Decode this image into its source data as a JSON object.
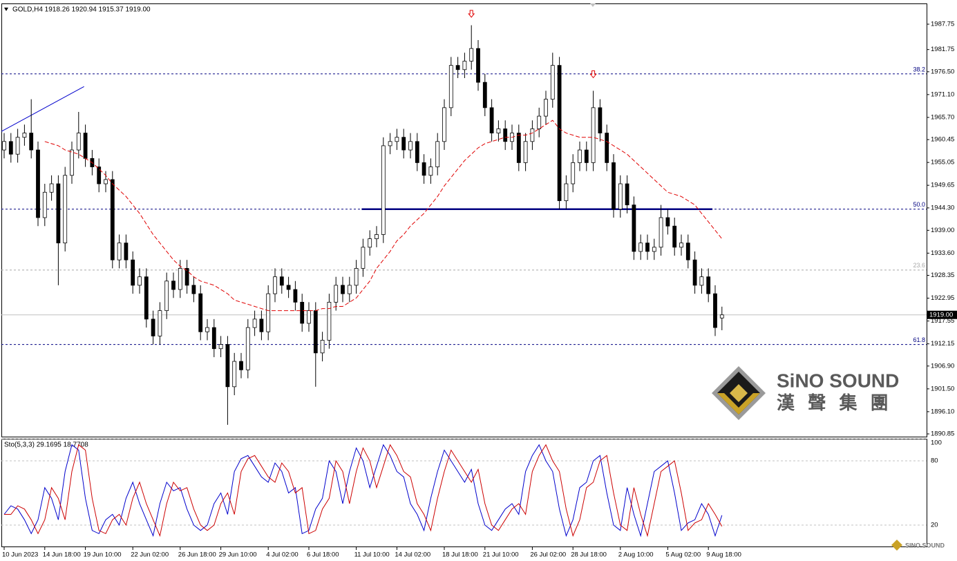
{
  "chart_data": [
    {
      "type": "candlestick",
      "title": "GOLD,H4  1918.26 1920.94 1915.37 1919.00",
      "categories": [
        "10 Jun 2023",
        null,
        null,
        null,
        null,
        null,
        "14 Jun 18:00",
        null,
        null,
        null,
        null,
        null,
        "19 Jun 10:00",
        null,
        null,
        null,
        null,
        null,
        null,
        "22 Jun 02:00",
        null,
        null,
        null,
        null,
        null,
        null,
        "26 Jun 18:00",
        null,
        null,
        null,
        null,
        null,
        "29 Jun 10:00",
        null,
        null,
        null,
        null,
        null,
        null,
        "4 Jul 02:00",
        null,
        null,
        null,
        null,
        null,
        "6 Jul 18:00",
        null,
        null,
        null,
        null,
        null,
        null,
        "11 Jul 10:00",
        null,
        null,
        null,
        null,
        null,
        "14 Jul 02:00",
        null,
        null,
        null,
        null,
        null,
        null,
        "18 Jul 18:00",
        null,
        null,
        null,
        null,
        null,
        "21 Jul 10:00",
        null,
        null,
        null,
        null,
        null,
        null,
        "26 Jul 02:00",
        null,
        null,
        null,
        null,
        null,
        "28 Jul 18:00",
        null,
        null,
        null,
        null,
        null,
        null,
        "2 Aug 10:00",
        null,
        null,
        null,
        null,
        null,
        null,
        "5 Aug 02:00",
        null,
        null,
        null,
        null,
        null,
        "9 Aug 18:00",
        null,
        null
      ],
      "open": [
        1958,
        1960,
        1957,
        1961,
        1962,
        1958,
        1942,
        1948,
        1950,
        1936,
        1952,
        1958,
        1962,
        1956,
        1954,
        1950,
        1951,
        1932,
        1936,
        1932,
        1926,
        1928,
        1918,
        1914,
        1920,
        1927,
        1925,
        1930,
        1926,
        1924,
        1915,
        1916,
        1911,
        1912,
        1902,
        1908,
        1906,
        1916,
        1918,
        1915,
        1924,
        1928,
        1926,
        1925,
        1922,
        1917,
        1920,
        1910,
        1913,
        1922,
        1926,
        1924,
        1926,
        1930,
        1935,
        1937,
        1938,
        1959,
        1960,
        1961,
        1958,
        1960,
        1955,
        1952,
        1954,
        1960,
        1968,
        1978,
        1977,
        1979,
        1982,
        1974,
        1968,
        1962,
        1963,
        1960,
        1962,
        1955,
        1960,
        1963,
        1966,
        1970,
        1978,
        1946,
        1950,
        1955,
        1958,
        1955,
        1968,
        1962,
        1955,
        1944,
        1950,
        1945,
        1934,
        1936,
        1934,
        1935,
        1942,
        1940,
        1935,
        1936,
        1932,
        1926,
        1928,
        1924,
        1918.26
      ],
      "high": [
        1962,
        1962,
        1963,
        1964,
        1970,
        1960,
        1950,
        1952,
        1952,
        1954,
        1960,
        1967,
        1964,
        1958,
        1956,
        1953,
        1953,
        1938,
        1938,
        1934,
        1930,
        1930,
        1920,
        1922,
        1929,
        1929,
        1932,
        1932,
        1928,
        1926,
        1918,
        1918,
        1914,
        1914,
        1910,
        1910,
        1918,
        1920,
        1920,
        1926,
        1930,
        1930,
        1928,
        1927,
        1924,
        1922,
        1922,
        1915,
        1924,
        1928,
        1928,
        1928,
        1932,
        1937,
        1939,
        1940,
        1961,
        1962,
        1963,
        1963,
        1962,
        1962,
        1957,
        1956,
        1962,
        1970,
        1980,
        1980,
        1981,
        1987.5,
        1984,
        1976,
        1970,
        1965,
        1965,
        1964,
        1964,
        1962,
        1965,
        1968,
        1972,
        1981,
        1980,
        1952,
        1957,
        1960,
        1960,
        1972,
        1970,
        1964,
        1957,
        1952,
        1952,
        1947,
        1938,
        1938,
        1937,
        1945,
        1944,
        1942,
        1938,
        1938,
        1934,
        1930,
        1930,
        1926,
        1920.94
      ],
      "low": [
        1956,
        1955,
        1955,
        1959,
        1956,
        1940,
        1940,
        1946,
        1926,
        1934,
        1950,
        1956,
        1954,
        1952,
        1948,
        1948,
        1930,
        1930,
        1930,
        1924,
        1924,
        1916,
        1912,
        1912,
        1918,
        1923,
        1923,
        1924,
        1922,
        1913,
        1913,
        1909,
        1909,
        1893,
        1900,
        1904,
        1904,
        1914,
        1913,
        1913,
        1922,
        1924,
        1923,
        1920,
        1915,
        1915,
        1902,
        1908,
        1911,
        1920,
        1922,
        1922,
        1924,
        1928,
        1933,
        1935,
        1936,
        1957,
        1958,
        1956,
        1956,
        1953,
        1950,
        1950,
        1952,
        1958,
        1966,
        1975,
        1975,
        1977,
        1972,
        1966,
        1960,
        1960,
        1958,
        1958,
        1953,
        1953,
        1958,
        1961,
        1964,
        1968,
        1944,
        1944,
        1948,
        1953,
        1953,
        1953,
        1960,
        1953,
        1942,
        1942,
        1943,
        1932,
        1932,
        1932,
        1932,
        1933,
        1938,
        1933,
        1933,
        1930,
        1924,
        1924,
        1922,
        1914,
        1915.37
      ],
      "close": [
        1960,
        1957,
        1961,
        1962,
        1958,
        1942,
        1948,
        1950,
        1936,
        1952,
        1958,
        1962,
        1956,
        1954,
        1950,
        1951,
        1932,
        1936,
        1932,
        1926,
        1928,
        1918,
        1914,
        1920,
        1927,
        1925,
        1930,
        1926,
        1924,
        1915,
        1916,
        1911,
        1912,
        1902,
        1908,
        1906,
        1916,
        1918,
        1915,
        1924,
        1928,
        1926,
        1925,
        1922,
        1917,
        1920,
        1910,
        1913,
        1922,
        1926,
        1924,
        1926,
        1930,
        1935,
        1937,
        1938,
        1959,
        1960,
        1961,
        1958,
        1960,
        1955,
        1952,
        1954,
        1960,
        1968,
        1978,
        1977,
        1979,
        1982,
        1974,
        1968,
        1962,
        1963,
        1960,
        1962,
        1955,
        1960,
        1963,
        1966,
        1970,
        1978,
        1946,
        1950,
        1955,
        1958,
        1955,
        1968,
        1962,
        1955,
        1944,
        1950,
        1945,
        1934,
        1936,
        1934,
        1935,
        1942,
        1940,
        1935,
        1936,
        1932,
        1926,
        1928,
        1924,
        1916,
        1919
      ],
      "up_color": "#ffffff",
      "down_color": "#000000",
      "wick_color": "#000000",
      "moving_average": {
        "color": "#e00000",
        "values": [
          null,
          null,
          null,
          null,
          null,
          null,
          1960,
          1959.5,
          1959,
          1958,
          1957.5,
          1957,
          1956,
          1955,
          1953.5,
          1952,
          1950,
          1948.5,
          1947,
          1945,
          1943,
          1940.5,
          1938,
          1936,
          1934,
          1932,
          1930.5,
          1929.5,
          1928,
          1927,
          1926.5,
          1926,
          1925,
          1924,
          1922.5,
          1922,
          1921.5,
          1921,
          1920.5,
          1920,
          1920,
          1920,
          1920,
          1920,
          1920,
          1920,
          1920,
          1920.5,
          1920.5,
          1921,
          1921,
          1922,
          1923,
          1925,
          1927,
          1930,
          1932,
          1934,
          1936.5,
          1938,
          1940,
          1941.5,
          1943,
          1945,
          1947,
          1949.5,
          1951.5,
          1953.5,
          1955.5,
          1957,
          1958.5,
          1959.5,
          1960,
          1960.5,
          1961,
          1961,
          1961.5,
          1961.5,
          1962,
          1963,
          1964,
          1965,
          1963,
          1962,
          1961.5,
          1961,
          1961,
          1961,
          1960.5,
          1960,
          1959,
          1958,
          1957,
          1955.5,
          1954,
          1952.5,
          1951,
          1949.5,
          1948,
          1947.5,
          1947,
          1946,
          1945,
          1943,
          1941,
          1939,
          1937
        ]
      },
      "ylim": [
        1890.2,
        1992.65
      ],
      "yticks": [
        1987.75,
        1981.75,
        {
          "value": 1976.5,
          "label": "1976.50"
        },
        {
          "value": 1971.1,
          "label": "1971.10"
        },
        {
          "value": 1965.7,
          "label": "1965.70"
        },
        1960.45,
        1955.05,
        1949.65,
        {
          "value": 1944.3,
          "label": "1944.30"
        },
        {
          "value": 1939,
          "label": "1939.00"
        },
        {
          "value": 1933.6,
          "label": "1933.60"
        },
        1928.35,
        1922.95,
        1917.55,
        1912.15,
        {
          "value": 1906.9,
          "label": "1906.90"
        },
        {
          "value": 1901.5,
          "label": "1901.50"
        },
        {
          "value": 1896.1,
          "label": "1896.10"
        },
        1890.85
      ],
      "levels": [
        {
          "price": 1976.0,
          "ratio": "38.2",
          "color": "#000080"
        },
        {
          "price": 1944.0,
          "ratio": "50.0",
          "color": "#000080"
        },
        {
          "price": 1929.6,
          "ratio": "23.6",
          "color": "#a8a8a8"
        },
        {
          "price": 1912.0,
          "ratio": "61.8",
          "color": "#000080"
        }
      ],
      "current_price": {
        "value": 1919,
        "label": "1919.00"
      },
      "trendline": {
        "color": "#0000cc",
        "x": [
          -0.4,
          11.8
        ],
        "y": [
          1962.4,
          1973.0
        ]
      },
      "neckline": {
        "color": "#000080",
        "x": [
          52.8,
          104.6
        ],
        "y": [
          1944,
          1944
        ]
      },
      "fractals": [
        {
          "index": 69,
          "value": 1990.2
        },
        {
          "index": 87,
          "value": 1975.9
        }
      ]
    },
    {
      "type": "line",
      "title": "Sto(5,3,3) 29.1695 18.7708",
      "ylim": [
        0,
        100
      ],
      "yticks": [
        100,
        80,
        20
      ],
      "grid": true,
      "series": [
        {
          "color": "#0000cc",
          "values": [
            30,
            38,
            35,
            25,
            12,
            25,
            55,
            45,
            25,
            70,
            95,
            90,
            45,
            15,
            12,
            25,
            30,
            20,
            45,
            60,
            40,
            25,
            10,
            40,
            60,
            52,
            55,
            35,
            20,
            15,
            20,
            40,
            50,
            30,
            70,
            82,
            85,
            75,
            65,
            60,
            78,
            70,
            50,
            55,
            12,
            15,
            35,
            45,
            80,
            70,
            40,
            70,
            92,
            80,
            55,
            75,
            95,
            85,
            70,
            65,
            40,
            30,
            15,
            45,
            70,
            90,
            80,
            70,
            60,
            72,
            40,
            20,
            15,
            25,
            35,
            40,
            30,
            70,
            85,
            95,
            80,
            70,
            35,
            10,
            25,
            55,
            60,
            80,
            85,
            50,
            20,
            15,
            55,
            30,
            10,
            40,
            70,
            75,
            80,
            50,
            15,
            22,
            25,
            40,
            30,
            10,
            29.1695
          ]
        },
        {
          "color": "#cc0000",
          "values": [
            30,
            30,
            38,
            35,
            25,
            12,
            25,
            55,
            45,
            25,
            70,
            95,
            90,
            45,
            15,
            12,
            25,
            30,
            20,
            45,
            60,
            40,
            25,
            10,
            40,
            60,
            52,
            55,
            35,
            20,
            15,
            20,
            40,
            50,
            30,
            70,
            82,
            85,
            75,
            65,
            60,
            78,
            70,
            50,
            55,
            12,
            15,
            35,
            45,
            80,
            70,
            40,
            70,
            92,
            80,
            55,
            75,
            95,
            85,
            70,
            65,
            40,
            30,
            15,
            45,
            70,
            90,
            80,
            70,
            60,
            72,
            40,
            20,
            15,
            25,
            35,
            40,
            30,
            70,
            85,
            95,
            80,
            70,
            35,
            10,
            25,
            55,
            60,
            80,
            85,
            50,
            20,
            15,
            55,
            30,
            10,
            40,
            70,
            75,
            80,
            50,
            15,
            22,
            25,
            40,
            30,
            18.7708
          ]
        }
      ]
    }
  ],
  "logo": {
    "name": "SiNO SOUND",
    "chinese": "漢 聲 集 團"
  },
  "watermark": "SINO SOUND"
}
